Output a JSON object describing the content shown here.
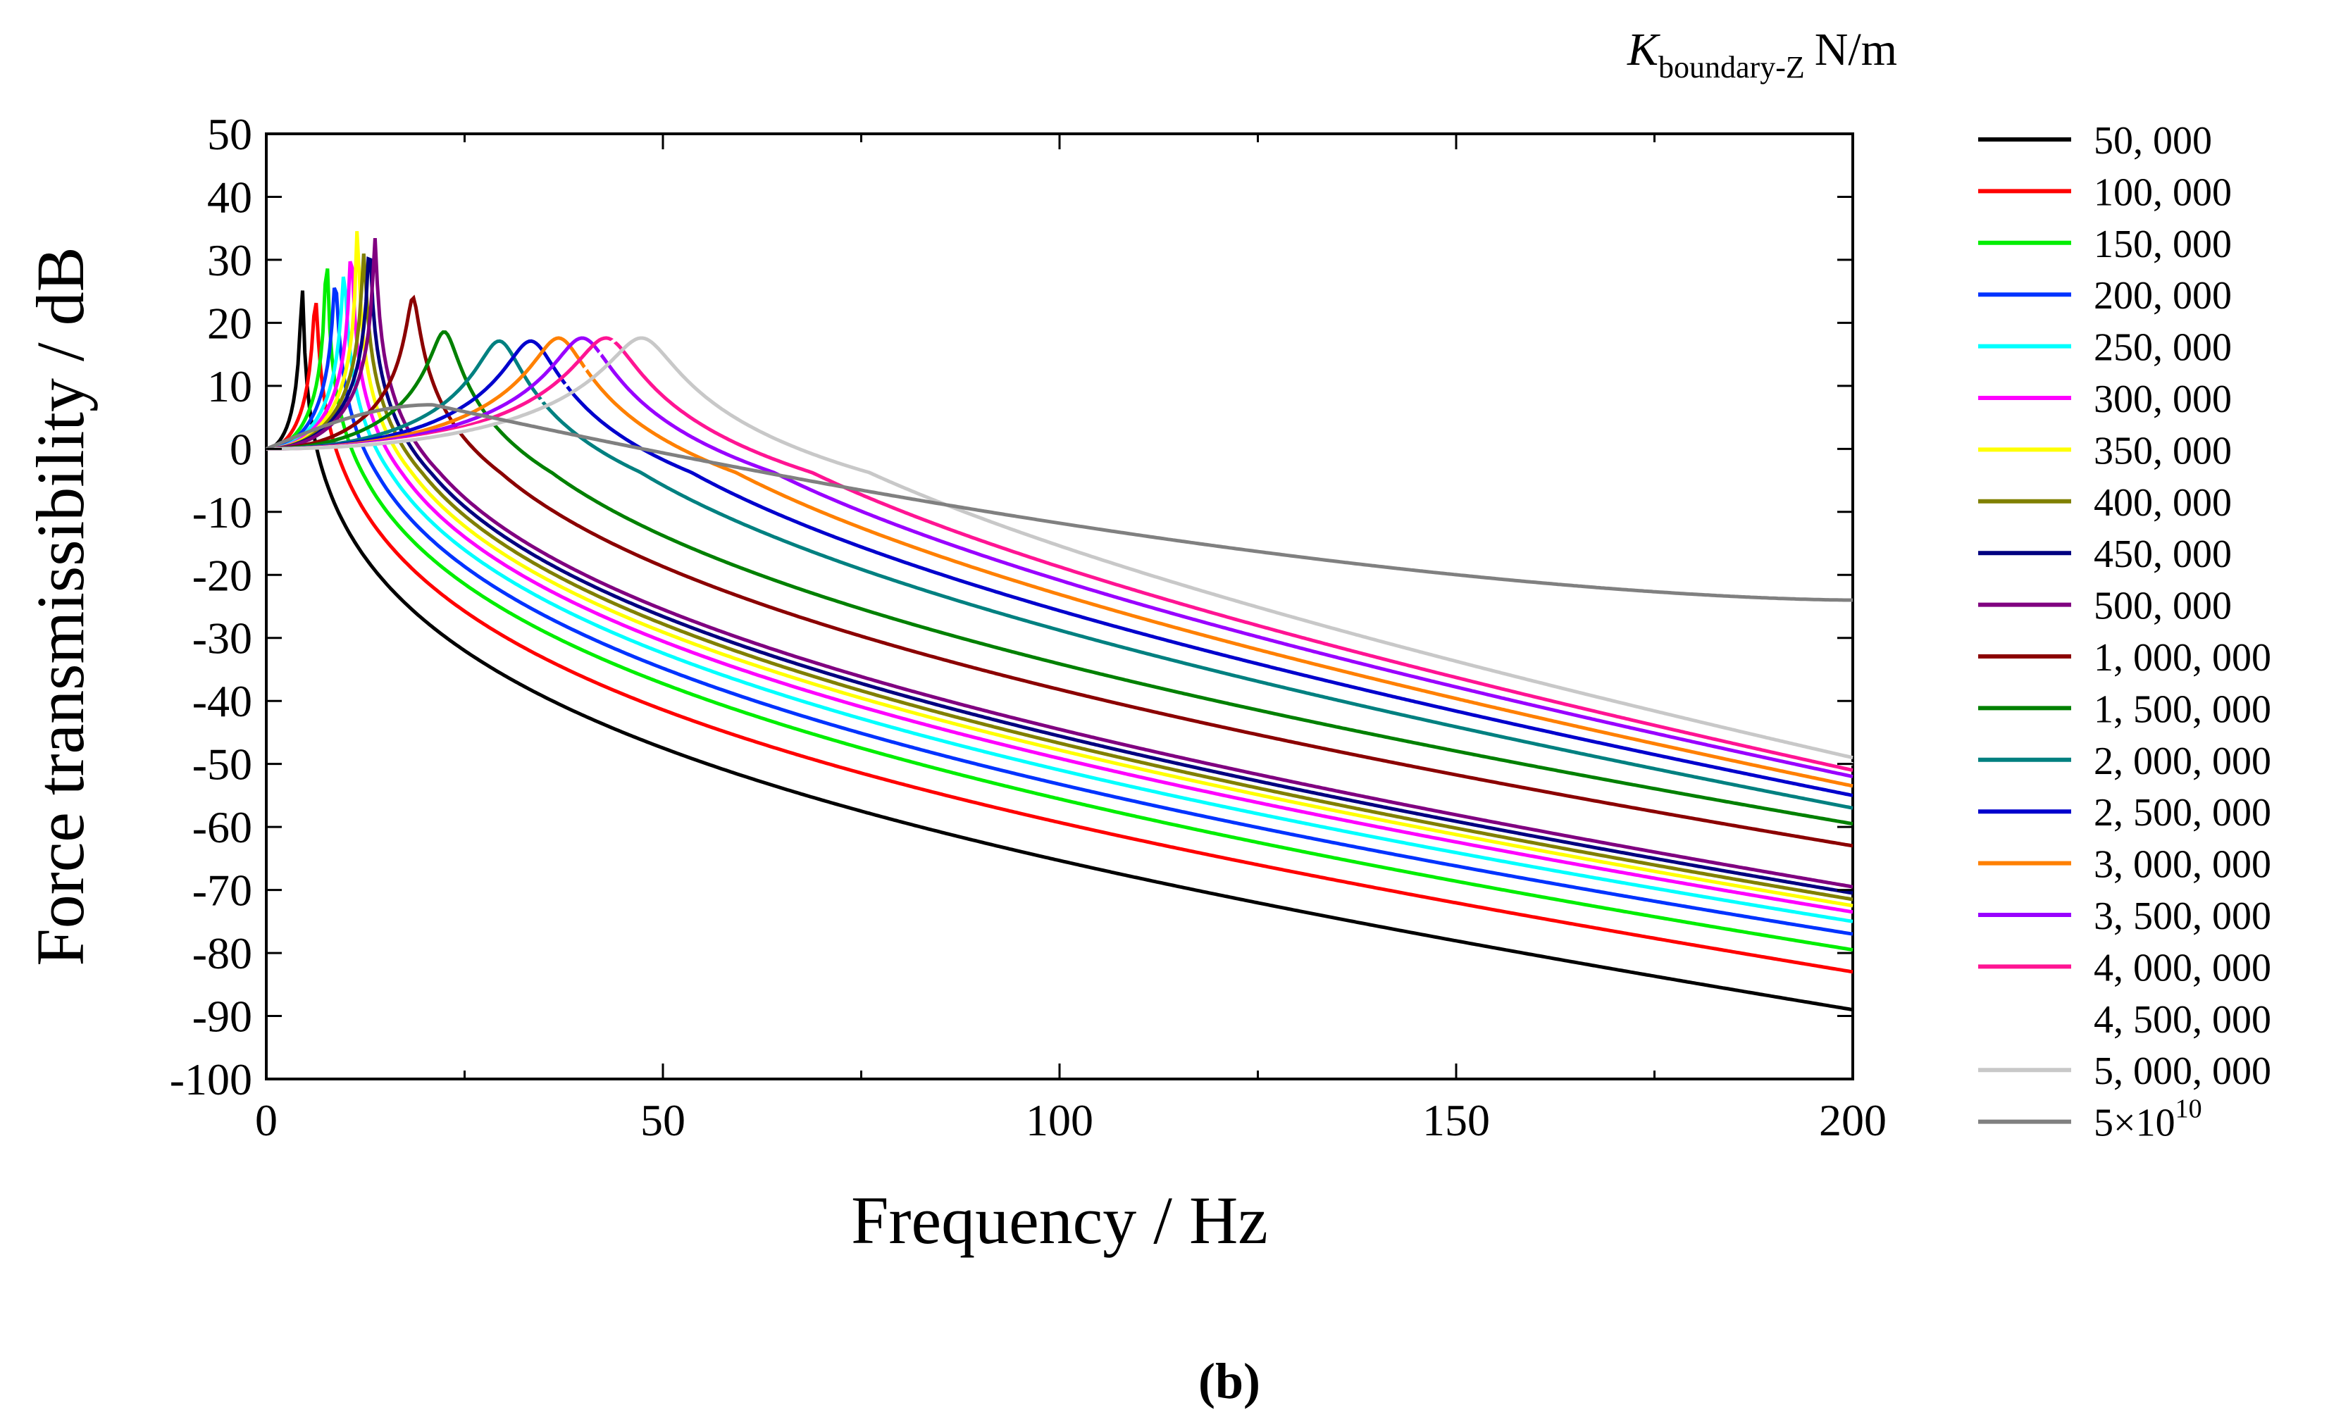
{
  "chart_data": {
    "type": "line",
    "title": "",
    "xlabel": "Frequency / Hz",
    "ylabel": "Force transmissibility / dB",
    "xlim": [
      0,
      200
    ],
    "ylim": [
      -100,
      50
    ],
    "xticks": [
      0,
      50,
      100,
      150,
      200
    ],
    "xtick_labels": [
      "0",
      "50",
      "100",
      "150",
      "200"
    ],
    "yticks": [
      50,
      40,
      30,
      20,
      10,
      0,
      -10,
      -20,
      -30,
      -40,
      -50,
      -60,
      -70,
      -80,
      -90,
      -100
    ],
    "ytick_labels": [
      "50",
      "40",
      "30",
      "20",
      "10",
      "0",
      "-10",
      "-20",
      "-30",
      "-40",
      "-50",
      "-60",
      "-70",
      "-80",
      "-90",
      "-100"
    ],
    "legend_title": {
      "symbol": "K",
      "subscript": "boundary-Z",
      "unit": "N/m"
    },
    "legend_position": "right",
    "caption": "(b)",
    "series": [
      {
        "name": "50, 000",
        "color": "#000000",
        "fr": 4.5,
        "peak": 27,
        "end": -89
      },
      {
        "name": "100, 000",
        "color": "#ff0000",
        "fr": 6.2,
        "peak": 24,
        "end": -83
      },
      {
        "name": "150, 000",
        "color": "#00ee00",
        "fr": 7.6,
        "peak": 33.5,
        "end": -79.5
      },
      {
        "name": "200, 000",
        "color": "#0033ff",
        "fr": 8.7,
        "peak": 27,
        "end": -77
      },
      {
        "name": "250, 000",
        "color": "#00ffff",
        "fr": 9.8,
        "peak": 28,
        "end": -75
      },
      {
        "name": "300, 000",
        "color": "#ff00ff",
        "fr": 10.7,
        "peak": 33,
        "end": -73.5
      },
      {
        "name": "350, 000",
        "color": "#ffff00",
        "fr": 11.5,
        "peak": 37,
        "end": -72.5
      },
      {
        "name": "400, 000",
        "color": "#808000",
        "fr": 12.3,
        "peak": 31,
        "end": -71.5
      },
      {
        "name": "450, 000",
        "color": "#000080",
        "fr": 13.0,
        "peak": 33,
        "end": -70.5
      },
      {
        "name": "500, 000",
        "color": "#800080",
        "fr": 13.7,
        "peak": 33.5,
        "end": -69.5
      },
      {
        "name": "1, 000, 000",
        "color": "#8b0000",
        "fr": 18.5,
        "peak": 24,
        "end": -63
      },
      {
        "name": "1, 500, 000",
        "color": "#008000",
        "fr": 22.5,
        "peak": 18.5,
        "end": -59.5
      },
      {
        "name": "2, 000, 000",
        "color": "#008080",
        "fr": 29.5,
        "peak": 17,
        "end": -57
      },
      {
        "name": "2, 500, 000",
        "color": "#0000cd",
        "fr": 33.5,
        "peak": 17,
        "end": -55
      },
      {
        "name": "3, 000, 000",
        "color": "#ff8000",
        "fr": 37,
        "peak": 17.5,
        "end": -53.5
      },
      {
        "name": "3, 500, 000",
        "color": "#9900ff",
        "fr": 40,
        "peak": 17.5,
        "end": -52
      },
      {
        "name": "4, 000, 000",
        "color": "#ff1493",
        "fr": 43,
        "peak": 17.5,
        "end": -51
      },
      {
        "name": "4, 500, 000",
        "color": "#ffffff",
        "fr": 45,
        "peak": 17.5,
        "end": -50
      },
      {
        "name": "5, 000, 000",
        "color": "#c8c8c8",
        "fr": 47.5,
        "peak": 17.5,
        "end": -49
      },
      {
        "name": "5×10",
        "superscript": "10",
        "color": "#808080",
        "special": "rigid",
        "peak": 7,
        "end": -24
      }
    ]
  }
}
